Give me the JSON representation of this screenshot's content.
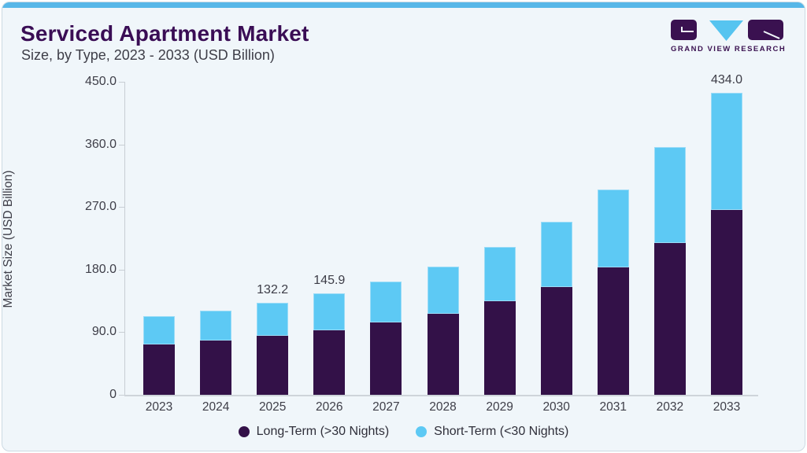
{
  "page": {
    "title": "Serviced Apartment Market",
    "subtitle": "Size, by Type, 2023 - 2033 (USD Billion)"
  },
  "logo": {
    "text": "GRAND VIEW RESEARCH"
  },
  "colors": {
    "background": "#f0f6fa",
    "accent_top_bar": "#57b7e8",
    "title_text": "#3a0d55",
    "body_text": "#3e3e48",
    "axis_line": "#c8ced4",
    "long_term": "#331148",
    "short_term": "#5dc9f4",
    "logo_purple": "#3a1150",
    "logo_blue": "#56c4f0"
  },
  "chart_data": {
    "type": "bar",
    "stacked": true,
    "title": "Serviced Apartment Market Size, by Type, 2023 - 2033 (USD Billion)",
    "categories": [
      "2023",
      "2024",
      "2025",
      "2026",
      "2027",
      "2028",
      "2029",
      "2030",
      "2031",
      "2032",
      "2033"
    ],
    "series": [
      {
        "name": "Long-Term (>30 Nights)",
        "color": "#331148",
        "values": [
          72.6,
          77.8,
          84.7,
          92.8,
          103.6,
          116.5,
          134.1,
          154.8,
          183.1,
          218.7,
          265.4
        ]
      },
      {
        "name": "Short-Term (<30 Nights)",
        "color": "#5dc9f4",
        "values": [
          40.8,
          43.0,
          47.5,
          53.1,
          59.2,
          68.1,
          78.9,
          94.1,
          111.7,
          137.0,
          168.6
        ]
      }
    ],
    "totals": [
      113.4,
      120.8,
      132.2,
      145.9,
      162.8,
      184.6,
      213.0,
      248.9,
      294.8,
      355.7,
      434.0
    ],
    "shown_total_labels": {
      "2025": "132.2",
      "2026": "145.9",
      "2033": "434.0"
    },
    "xlabel": "",
    "ylabel": "Market Size (USD Billion)",
    "ylim": [
      0,
      450
    ],
    "yticks": [
      {
        "value": 450,
        "label": "450.0"
      },
      {
        "value": 360,
        "label": "360.0"
      },
      {
        "value": 270,
        "label": "270.0"
      },
      {
        "value": 180,
        "label": "180.0"
      },
      {
        "value": 90,
        "label": "90.0"
      },
      {
        "value": 0,
        "label": "0"
      }
    ],
    "grid": false,
    "legend_position": "bottom"
  }
}
